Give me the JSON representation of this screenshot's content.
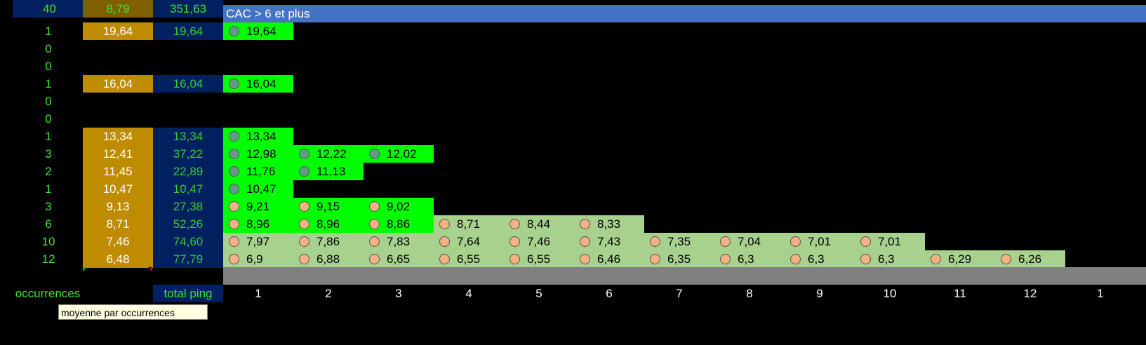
{
  "header": {
    "title": "CAC > 6 et plus"
  },
  "rows": [
    {
      "occ": "1",
      "avg": "19,64",
      "tot": "19,64",
      "pings": [
        {
          "v": "19,64",
          "c": "green",
          "d": "teal"
        }
      ]
    },
    {
      "occ": "0",
      "avg": "",
      "tot": "",
      "pings": []
    },
    {
      "occ": "0",
      "avg": "",
      "tot": "",
      "pings": []
    },
    {
      "occ": "1",
      "avg": "16,04",
      "tot": "16,04",
      "pings": [
        {
          "v": "16,04",
          "c": "green",
          "d": "teal"
        }
      ]
    },
    {
      "occ": "0",
      "avg": "",
      "tot": "",
      "pings": []
    },
    {
      "occ": "0",
      "avg": "",
      "tot": "",
      "pings": []
    },
    {
      "occ": "1",
      "avg": "13,34",
      "tot": "13,34",
      "pings": [
        {
          "v": "13,34",
          "c": "green",
          "d": "teal"
        }
      ]
    },
    {
      "occ": "3",
      "avg": "12,41",
      "tot": "37,22",
      "pings": [
        {
          "v": "12,98",
          "c": "green",
          "d": "teal"
        },
        {
          "v": "12,22",
          "c": "green",
          "d": "teal"
        },
        {
          "v": "12,02",
          "c": "green",
          "d": "teal"
        }
      ]
    },
    {
      "occ": "2",
      "avg": "11,45",
      "tot": "22,89",
      "pings": [
        {
          "v": "11,76",
          "c": "green",
          "d": "teal"
        },
        {
          "v": "11,13",
          "c": "green",
          "d": "teal"
        }
      ]
    },
    {
      "occ": "1",
      "avg": "10,47",
      "tot": "10,47",
      "pings": [
        {
          "v": "10,47",
          "c": "green",
          "d": "teal"
        }
      ]
    },
    {
      "occ": "3",
      "avg": "9,13",
      "tot": "27,38",
      "pings": [
        {
          "v": "9,21",
          "c": "green",
          "d": "orange"
        },
        {
          "v": "9,15",
          "c": "green",
          "d": "orange"
        },
        {
          "v": "9,02",
          "c": "green",
          "d": "orange"
        }
      ]
    },
    {
      "occ": "6",
      "avg": "8,71",
      "tot": "52,26",
      "pings": [
        {
          "v": "8,96",
          "c": "green",
          "d": "orange"
        },
        {
          "v": "8,96",
          "c": "green",
          "d": "orange"
        },
        {
          "v": "8,86",
          "c": "green",
          "d": "orange"
        },
        {
          "v": "8,71",
          "c": "light",
          "d": "orange"
        },
        {
          "v": "8,44",
          "c": "light",
          "d": "orange"
        },
        {
          "v": "8,33",
          "c": "light",
          "d": "orange"
        }
      ]
    },
    {
      "occ": "10",
      "avg": "7,46",
      "tot": "74,60",
      "pings": [
        {
          "v": "7,97",
          "c": "light",
          "d": "orange"
        },
        {
          "v": "7,86",
          "c": "light",
          "d": "orange"
        },
        {
          "v": "7,83",
          "c": "light",
          "d": "orange"
        },
        {
          "v": "7,64",
          "c": "light",
          "d": "orange"
        },
        {
          "v": "7,46",
          "c": "light",
          "d": "orange"
        },
        {
          "v": "7,43",
          "c": "light",
          "d": "orange"
        },
        {
          "v": "7,35",
          "c": "light",
          "d": "orange"
        },
        {
          "v": "7,04",
          "c": "light",
          "d": "orange"
        },
        {
          "v": "7,01",
          "c": "light",
          "d": "orange"
        },
        {
          "v": "7,01",
          "c": "light",
          "d": "orange"
        }
      ]
    },
    {
      "occ": "12",
      "avg": "6,48",
      "tot": "77,79",
      "pings": [
        {
          "v": "6,9",
          "c": "light",
          "d": "orange"
        },
        {
          "v": "6,88",
          "c": "light",
          "d": "orange"
        },
        {
          "v": "6,65",
          "c": "light",
          "d": "orange"
        },
        {
          "v": "6,55",
          "c": "light",
          "d": "orange"
        },
        {
          "v": "6,55",
          "c": "light",
          "d": "orange"
        },
        {
          "v": "6,46",
          "c": "light",
          "d": "orange"
        },
        {
          "v": "6,35",
          "c": "light",
          "d": "orange"
        },
        {
          "v": "6,3",
          "c": "light",
          "d": "orange"
        },
        {
          "v": "6,3",
          "c": "light",
          "d": "orange"
        },
        {
          "v": "6,3",
          "c": "light",
          "d": "orange"
        },
        {
          "v": "6,29",
          "c": "light",
          "d": "orange"
        },
        {
          "v": "6,26",
          "c": "light",
          "d": "orange"
        }
      ]
    }
  ],
  "totals": {
    "occ": "40",
    "avg": "8,79",
    "tot": "351,63"
  },
  "footer": {
    "occ_label": "occurrences",
    "tot_label": "total ping"
  },
  "columns": [
    "1",
    "2",
    "3",
    "4",
    "5",
    "6",
    "7",
    "8",
    "9",
    "10",
    "11",
    "12",
    "1"
  ],
  "tooltip": "moyenne par occurrences",
  "colors": {
    "green": "#00ff00",
    "light": "#a9d18e",
    "gold": "#bf8c00",
    "navy": "#002060",
    "blue": "#4472c4"
  }
}
